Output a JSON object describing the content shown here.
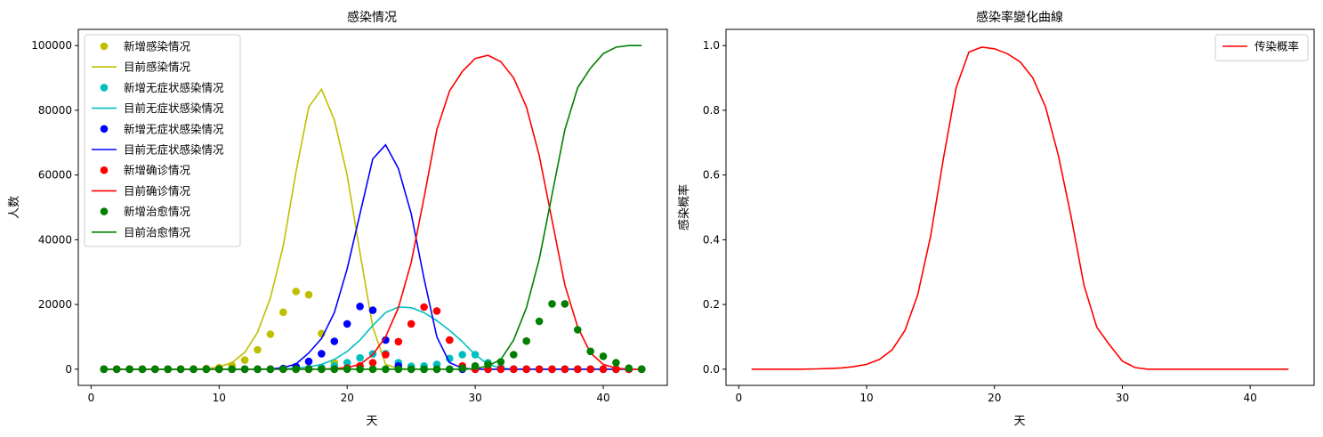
{
  "chart_data": [
    {
      "type": "line",
      "title": "感染情况",
      "xlabel": "天",
      "ylabel": "人数",
      "xlim": [
        -1,
        45
      ],
      "ylim": [
        -5000,
        105000
      ],
      "xticks": [
        0,
        10,
        20,
        30,
        40
      ],
      "yticks": [
        0,
        20000,
        40000,
        60000,
        80000,
        100000
      ],
      "grid": false,
      "legend_position": "top-left",
      "x": [
        1,
        2,
        3,
        4,
        5,
        6,
        7,
        8,
        9,
        10,
        11,
        12,
        13,
        14,
        15,
        16,
        17,
        18,
        19,
        20,
        21,
        22,
        23,
        24,
        25,
        26,
        27,
        28,
        29,
        30,
        31,
        32,
        33,
        34,
        35,
        36,
        37,
        38,
        39,
        40,
        41,
        42,
        43
      ],
      "series": [
        {
          "name": "新增感染情况",
          "kind": "scatter",
          "color": "#bfbf00",
          "values": [
            0,
            0,
            0,
            0,
            0,
            0,
            0,
            0,
            200,
            500,
            1200,
            2800,
            6000,
            10800,
            17600,
            24000,
            23000,
            11000,
            2000,
            300,
            0,
            0,
            0,
            0,
            0,
            0,
            0,
            0,
            0,
            0,
            0,
            0,
            0,
            0,
            0,
            0,
            0,
            0,
            0,
            0,
            0,
            0,
            0
          ]
        },
        {
          "name": "目前感染情况",
          "kind": "line",
          "color": "#bfbf00",
          "values": [
            0,
            0,
            0,
            0,
            0,
            0,
            0,
            0,
            200,
            700,
            2000,
            5200,
            11400,
            22000,
            38000,
            61000,
            81000,
            86500,
            77000,
            60000,
            36000,
            13000,
            1500,
            200,
            0,
            0,
            0,
            0,
            0,
            0,
            0,
            0,
            0,
            0,
            0,
            0,
            0,
            0,
            0,
            0,
            0,
            0,
            0
          ]
        },
        {
          "name": "新增无症状感染情况",
          "kind": "scatter",
          "color": "#00bfbf",
          "values": [
            0,
            0,
            0,
            0,
            0,
            0,
            0,
            0,
            0,
            0,
            0,
            0,
            0,
            0,
            0,
            0,
            200,
            500,
            1000,
            2000,
            3500,
            4700,
            4800,
            2000,
            900,
            1000,
            1500,
            3300,
            4500,
            4500,
            2000,
            500,
            0,
            0,
            0,
            0,
            0,
            0,
            0,
            0,
            0,
            0,
            0
          ]
        },
        {
          "name": "目前无症状感染情况",
          "kind": "line",
          "color": "#00bfbf",
          "values": [
            0,
            0,
            0,
            0,
            0,
            0,
            0,
            0,
            0,
            0,
            0,
            0,
            0,
            0,
            100,
            300,
            700,
            1500,
            3000,
            5500,
            9000,
            13500,
            17500,
            19200,
            19000,
            17500,
            15000,
            12000,
            8500,
            4500,
            1500,
            300,
            0,
            0,
            0,
            0,
            0,
            0,
            0,
            0,
            0,
            0,
            0
          ]
        },
        {
          "name": "新增无症状感染情况",
          "kind": "scatter",
          "color": "#0000ff",
          "values": [
            0,
            0,
            0,
            0,
            0,
            0,
            0,
            0,
            0,
            0,
            0,
            0,
            0,
            0,
            200,
            800,
            2400,
            4800,
            8600,
            14000,
            19400,
            18200,
            9000,
            1000,
            0,
            0,
            0,
            0,
            0,
            0,
            0,
            0,
            0,
            0,
            0,
            0,
            0,
            0,
            0,
            0,
            0,
            0,
            0
          ]
        },
        {
          "name": "目前无症状感染情况",
          "kind": "line",
          "color": "#0000ff",
          "values": [
            0,
            0,
            0,
            0,
            0,
            0,
            0,
            0,
            0,
            0,
            0,
            0,
            0,
            100,
            500,
            1600,
            5000,
            9500,
            17500,
            31000,
            48000,
            65000,
            69300,
            62000,
            48000,
            28000,
            10000,
            2000,
            300,
            0,
            0,
            0,
            0,
            0,
            0,
            0,
            0,
            0,
            0,
            0,
            0,
            0,
            0
          ]
        },
        {
          "name": "新增确诊情况",
          "kind": "scatter",
          "color": "#ff0000",
          "values": [
            0,
            0,
            0,
            0,
            0,
            0,
            0,
            0,
            0,
            0,
            0,
            0,
            0,
            0,
            0,
            0,
            0,
            0,
            0,
            300,
            1000,
            2000,
            4500,
            8500,
            14000,
            19200,
            18000,
            9000,
            1000,
            0,
            0,
            0,
            0,
            0,
            0,
            0,
            0,
            0,
            0,
            0,
            0,
            0,
            0
          ]
        },
        {
          "name": "目前确诊情况",
          "kind": "line",
          "color": "#ff0000",
          "values": [
            0,
            0,
            0,
            0,
            0,
            0,
            0,
            0,
            0,
            0,
            0,
            0,
            0,
            0,
            0,
            0,
            0,
            0,
            200,
            500,
            1500,
            4500,
            10000,
            19000,
            33000,
            53000,
            74000,
            86000,
            92000,
            96000,
            97000,
            95000,
            90000,
            81000,
            66000,
            46000,
            26000,
            13000,
            5000,
            1500,
            300,
            0,
            0
          ]
        },
        {
          "name": "新增治愈情况",
          "kind": "scatter",
          "color": "#008000",
          "values": [
            0,
            0,
            0,
            0,
            0,
            0,
            0,
            0,
            0,
            0,
            0,
            0,
            0,
            0,
            0,
            0,
            0,
            0,
            0,
            0,
            0,
            0,
            0,
            0,
            0,
            0,
            0,
            0,
            300,
            1000,
            1500,
            2300,
            4500,
            8700,
            14800,
            20200,
            20200,
            12200,
            5500,
            4000,
            2000,
            300,
            0
          ]
        },
        {
          "name": "目前治愈情况",
          "kind": "line",
          "color": "#008000",
          "values": [
            0,
            0,
            0,
            0,
            0,
            0,
            0,
            0,
            0,
            0,
            0,
            0,
            0,
            0,
            0,
            0,
            0,
            0,
            0,
            0,
            0,
            0,
            0,
            0,
            0,
            0,
            0,
            0,
            0,
            200,
            1000,
            3000,
            9000,
            19000,
            34000,
            54000,
            74000,
            87000,
            93000,
            97500,
            99500,
            100000,
            100000
          ]
        }
      ]
    },
    {
      "type": "line",
      "title": "感染率變化曲線",
      "xlabel": "天",
      "ylabel": "感染概率",
      "xlim": [
        -1,
        45
      ],
      "ylim": [
        -0.05,
        1.05
      ],
      "xticks": [
        0,
        10,
        20,
        30,
        40
      ],
      "yticks": [
        0.0,
        0.2,
        0.4,
        0.6,
        0.8,
        1.0
      ],
      "ytick_labels": [
        "0.0",
        "0.2",
        "0.4",
        "0.6",
        "0.8",
        "1.0"
      ],
      "grid": false,
      "legend_position": "top-right",
      "x": [
        1,
        2,
        3,
        4,
        5,
        6,
        7,
        8,
        9,
        10,
        11,
        12,
        13,
        14,
        15,
        16,
        17,
        18,
        19,
        20,
        21,
        22,
        23,
        24,
        25,
        26,
        27,
        28,
        29,
        30,
        31,
        32,
        33,
        34,
        35,
        36,
        37,
        38,
        39,
        40,
        41,
        42,
        43
      ],
      "series": [
        {
          "name": "传染概率",
          "kind": "line",
          "color": "#ff0000",
          "values": [
            0,
            0,
            0,
            0,
            0,
            0.001,
            0.002,
            0.004,
            0.008,
            0.015,
            0.03,
            0.06,
            0.12,
            0.23,
            0.41,
            0.65,
            0.87,
            0.98,
            0.995,
            0.99,
            0.975,
            0.95,
            0.9,
            0.81,
            0.66,
            0.47,
            0.26,
            0.13,
            0.075,
            0.025,
            0.005,
            0,
            0,
            0,
            0,
            0,
            0,
            0,
            0,
            0,
            0,
            0,
            0
          ]
        }
      ]
    }
  ]
}
